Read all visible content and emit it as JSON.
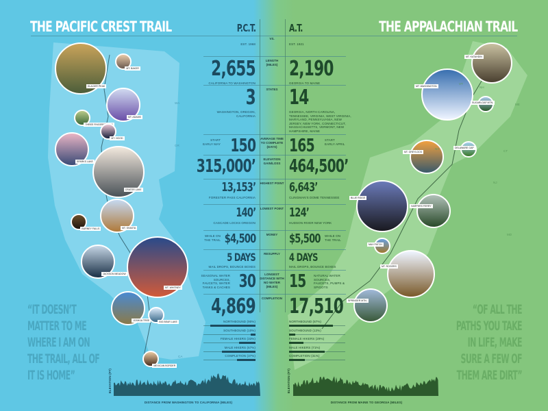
{
  "pct": {
    "title": "THE PACIFIC CREST TRAIL",
    "abbr": "P.C.T.",
    "est": "EST. 1968",
    "quote": "“IT DOESN’T MATTER TO ME WHERE I AM ON THE TRAIL, ALL OF IT IS HOME”",
    "photos": [
      "GLACIER PEAK",
      "MT. BAKER",
      "MT. ADAMS",
      "THREE FINGERED JACK",
      "MT. HOOD",
      "SPARKS LAKE",
      "CRATER LAKE",
      "BURNEY FALLS",
      "MT. SHASTA",
      "JACKSON MEADOW",
      "MT. WHITNEY",
      "JOSHUA TREE",
      "BIG BEAR LAKE",
      "MEXICAN BORDER"
    ],
    "elevation": {
      "ylabel": "ELEVATION (FT)",
      "xlabel": "DISTANCE FROM WASHINGTON TO CALIFORNIA (MILES)"
    },
    "states": [
      "WA",
      "OR",
      "CA"
    ]
  },
  "at": {
    "title": "THE APPALACHIAN TRAIL",
    "abbr": "A.T.",
    "est": "EST. 1921",
    "quote": "“OF ALL THE PATHS YOU TAKE IN LIFE, MAKE SURE A FEW OF THEM ARE DIRT”",
    "photos": [
      "MT. KATAHDIN",
      "MT. WASHINGTON",
      "SUGARLOAF MTN.",
      "MT. GREYLOCK",
      "DELAWARE GAP",
      "BLUE RIDGE",
      "HARPERS FERRY",
      "MAX PATCH",
      "MT. ROGERS",
      "SPRINGER MTN."
    ],
    "elevation": {
      "ylabel": "ELEVATION (FT)",
      "xlabel": "DISTANCE FROM MAINE TO GEORGIA (MILES)"
    },
    "states": [
      "ME",
      "NH",
      "VT",
      "CT",
      "NY",
      "NJ",
      "MD"
    ]
  },
  "vs": "VS.",
  "rows": {
    "length": {
      "label": "LENGTH (MILES)",
      "pct": "2,655",
      "pct_sub": "CALIFORNIA TO WASHINGTON",
      "at": "2,190",
      "at_sub": "GEORGIA TO MAINE"
    },
    "states": {
      "label": "STATES",
      "pct": "3",
      "pct_sub": "WASHINGTON, OREGON, CALIFORNIA",
      "at": "14",
      "at_sub": "GEORGIA, NORTH CAROLINA, TENNESSEE, VIRGINIA, WEST VIRGINIA, MARYLAND, PENNSYLVANIA, NEW JERSEY, NEW YORK, CONNECTICUT, MASSACHUSETTS, VERMONT, NEW HAMPSHIRE, MAINE"
    },
    "time": {
      "label": "AVERAGE TIME TO COMPLETE (DAYS)",
      "pct": "150",
      "pct_side": "START EARLY MAY",
      "at": "165",
      "at_side": "START EARLY APRIL"
    },
    "elev": {
      "label": "ELEVATION GAIN/LOSS",
      "pct": "315,000’",
      "at": "464,500’"
    },
    "high": {
      "label": "HIGHEST POINT",
      "pct": "13,153’",
      "pct_sub": "FORESTER PASS CALIFORNIA",
      "at": "6,643’",
      "at_sub": "CLINGMAN’S DOME TENNESSEE"
    },
    "low": {
      "label": "LOWEST POINT",
      "pct": "140’",
      "pct_sub": "CASCADE LOCKS OREGON",
      "at": "124’",
      "at_sub": "HUDSON RIVER NEW YORK"
    },
    "money": {
      "label": "MONEY",
      "pct": "$4,500",
      "pct_side": "WHILE ON THE TRAIL",
      "at": "$5,500",
      "at_side": "WHILE ON THE TRAIL"
    },
    "resupply": {
      "label": "RESUPPLY",
      "pct": "5 DAYS",
      "pct_sub": "MAIL DROPS, BOUNCE BOXES",
      "at": "4 DAYS",
      "at_sub": "MAIL DROPS, BOUNCE BOXES"
    },
    "water": {
      "label": "LONGEST DISTANCE WITH NO WATER (MILES)",
      "pct": "30",
      "pct_side": "SEASONAL WATER SOURCES, FAUCETS, WATER TANKS & CACHES",
      "at": "15",
      "at_side": "NATURAL WATER SOURCES, FAUCETS, PUMPS & SPIGOTS"
    },
    "completion": {
      "label": "COMPLETION",
      "pct": "4,869",
      "at": "17,510"
    }
  },
  "pct_bars": [
    {
      "label": "NORTHBOUND (90%)",
      "value": 90
    },
    {
      "label": "SOUTHBOUND (10%)",
      "value": 10
    },
    {
      "label": "FEMALE HIKERS (33%)",
      "value": 33
    },
    {
      "label": "MALE HIKERS (67%)",
      "value": 67
    },
    {
      "label": "COMPLETION (37%)",
      "value": 37
    }
  ],
  "at_bars": [
    {
      "label": "NORTHBOUND (87%)",
      "value": 87
    },
    {
      "label": "SOUTHBOUND (13%)",
      "value": 13
    },
    {
      "label": "FEMALE HIKERS (29%)",
      "value": 29
    },
    {
      "label": "MALE HIKERS (71%)",
      "value": 71
    },
    {
      "label": "COMPLETION (31%)",
      "value": 31
    }
  ],
  "colors": {
    "pct_bg": "#5fc7e4",
    "at_bg": "#84c67d",
    "pct_text": "#1c4b5f",
    "at_text": "#1e4a2b",
    "pct_map": "#8dd8ef",
    "at_map": "#a6d9a0"
  }
}
